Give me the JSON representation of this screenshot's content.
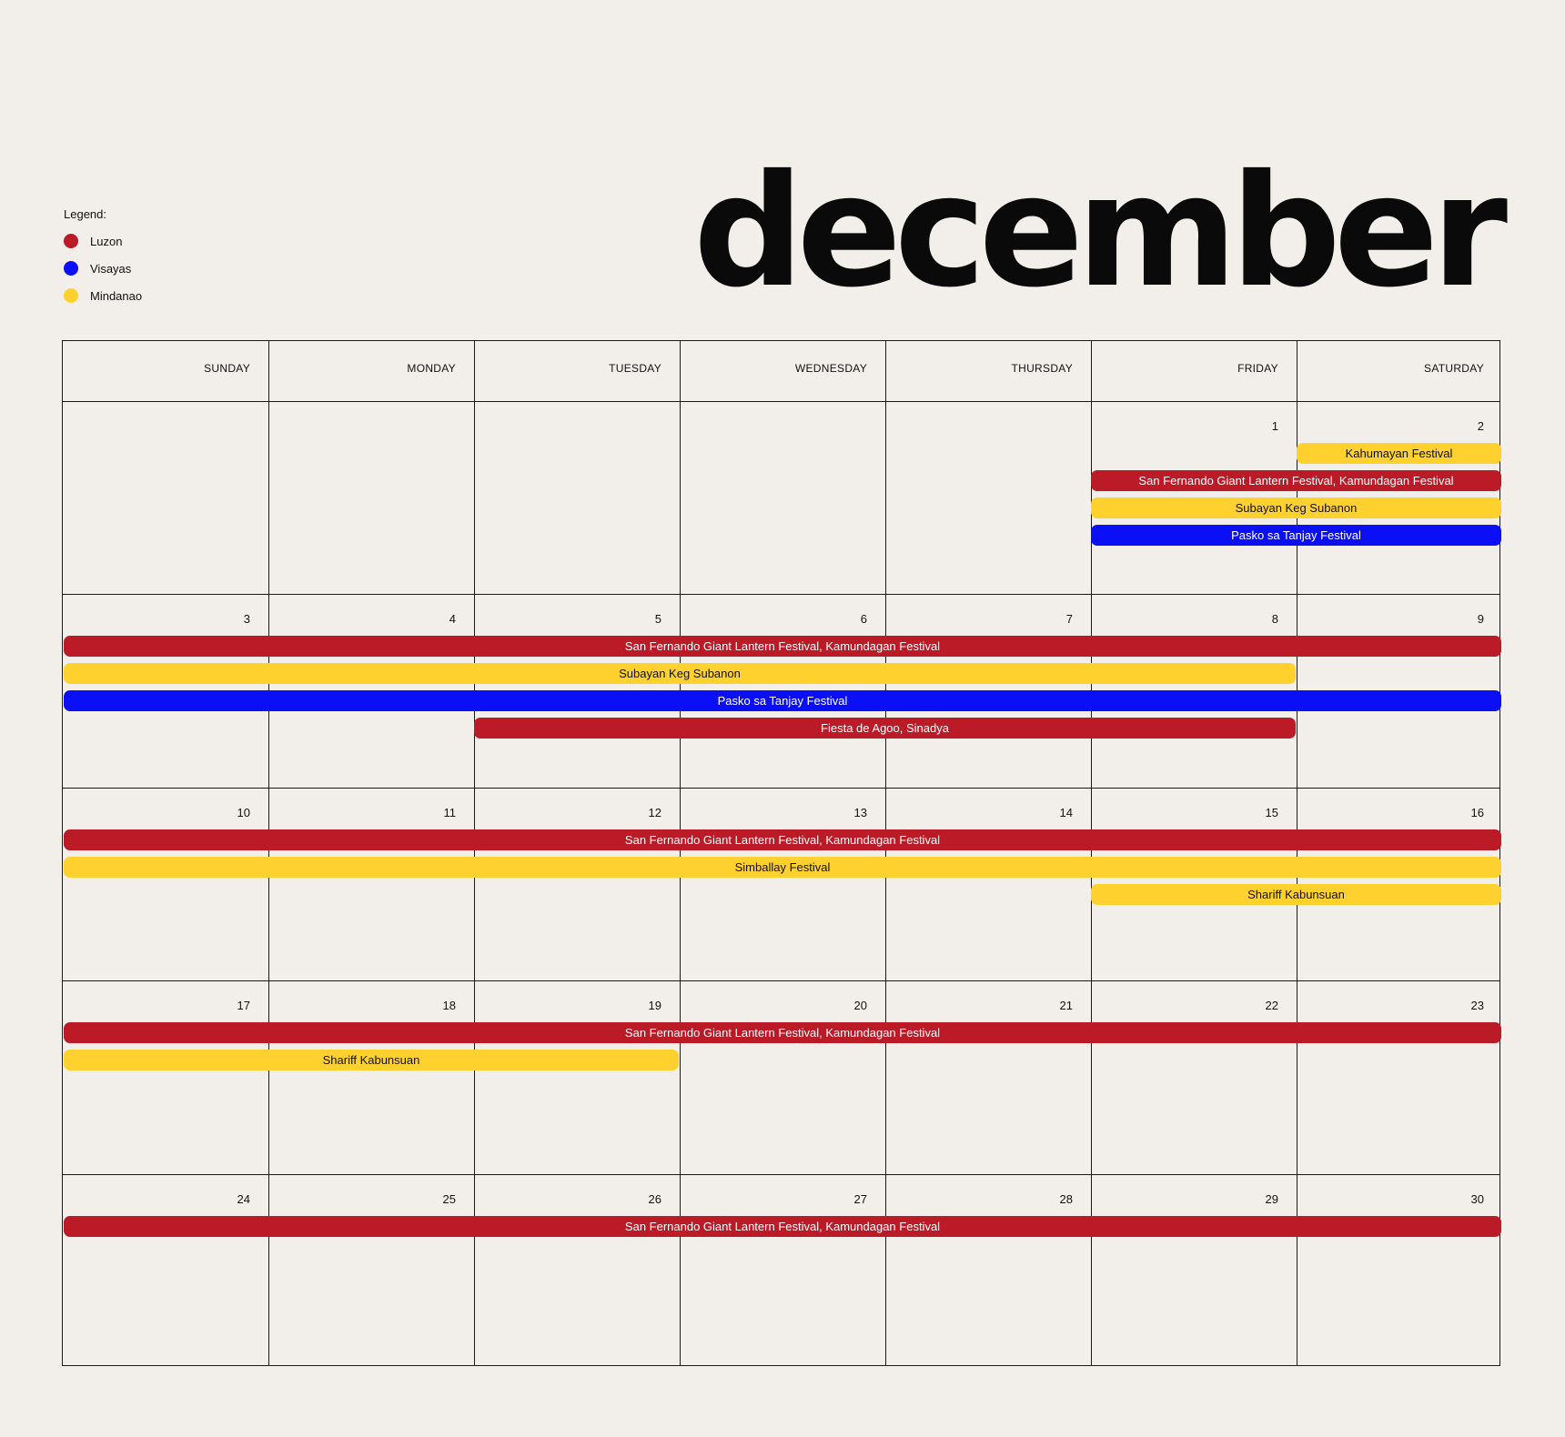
{
  "legend": {
    "title": "Legend:",
    "items": [
      {
        "label": "Luzon",
        "color": "#bb1a27"
      },
      {
        "label": "Visayas",
        "color": "#0a0ff5"
      },
      {
        "label": "Mindanao",
        "color": "#ffd12f"
      }
    ]
  },
  "month_title": "december",
  "days_of_week": [
    "SUNDAY",
    "MONDAY",
    "TUESDAY",
    "WEDNESDAY",
    "THURSDAY",
    "FRIDAY",
    "SATURDAY"
  ],
  "weeks": [
    [
      "",
      "",
      "",
      "",
      "",
      "1",
      "2"
    ],
    [
      "3",
      "4",
      "5",
      "6",
      "7",
      "8",
      "9"
    ],
    [
      "10",
      "11",
      "12",
      "13",
      "14",
      "15",
      "16"
    ],
    [
      "17",
      "18",
      "19",
      "20",
      "21",
      "22",
      "23"
    ],
    [
      "24",
      "25",
      "26",
      "27",
      "28",
      "29",
      "30"
    ]
  ],
  "events": [
    {
      "week": 0,
      "lane": 0,
      "start_day": 6,
      "end_day": 6,
      "label": "Kahumayan Festival",
      "region": "Mindanao"
    },
    {
      "week": 0,
      "lane": 1,
      "start_day": 5,
      "end_day": 6,
      "label": "San Fernando Giant Lantern Festival, Kamundagan Festival",
      "region": "Luzon"
    },
    {
      "week": 0,
      "lane": 2,
      "start_day": 5,
      "end_day": 6,
      "label": "Subayan Keg Subanon",
      "region": "Mindanao"
    },
    {
      "week": 0,
      "lane": 3,
      "start_day": 5,
      "end_day": 6,
      "label": "Pasko sa Tanjay Festival",
      "region": "Visayas"
    },
    {
      "week": 1,
      "lane": 0,
      "start_day": 0,
      "end_day": 6,
      "label": "San Fernando Giant Lantern Festival, Kamundagan Festival",
      "region": "Luzon"
    },
    {
      "week": 1,
      "lane": 1,
      "start_day": 0,
      "end_day": 5,
      "label": "Subayan Keg Subanon",
      "region": "Mindanao"
    },
    {
      "week": 1,
      "lane": 2,
      "start_day": 0,
      "end_day": 6,
      "label": "Pasko sa Tanjay Festival",
      "region": "Visayas"
    },
    {
      "week": 1,
      "lane": 3,
      "start_day": 2,
      "end_day": 5,
      "label": "Fiesta de Agoo, Sinadya",
      "region": "Luzon"
    },
    {
      "week": 2,
      "lane": 0,
      "start_day": 0,
      "end_day": 6,
      "label": "San Fernando Giant Lantern Festival, Kamundagan Festival",
      "region": "Luzon"
    },
    {
      "week": 2,
      "lane": 1,
      "start_day": 0,
      "end_day": 6,
      "label": "Simballay Festival",
      "region": "Mindanao"
    },
    {
      "week": 2,
      "lane": 2,
      "start_day": 5,
      "end_day": 6,
      "label": "Shariff Kabunsuan",
      "region": "Mindanao"
    },
    {
      "week": 3,
      "lane": 0,
      "start_day": 0,
      "end_day": 6,
      "label": "San Fernando Giant Lantern Festival, Kamundagan Festival",
      "region": "Luzon"
    },
    {
      "week": 3,
      "lane": 1,
      "start_day": 0,
      "end_day": 2,
      "label": "Shariff Kabunsuan",
      "region": "Mindanao"
    },
    {
      "week": 4,
      "lane": 0,
      "start_day": 0,
      "end_day": 6,
      "label": "San Fernando Giant Lantern Festival, Kamundagan Festival",
      "region": "Luzon"
    }
  ],
  "region_colors": {
    "Luzon": {
      "bg": "#bb1a27",
      "fg": "#ffffff"
    },
    "Visayas": {
      "bg": "#0a0ff5",
      "fg": "#ffffff"
    },
    "Mindanao": {
      "bg": "#ffd12f",
      "fg": "#111111"
    }
  }
}
